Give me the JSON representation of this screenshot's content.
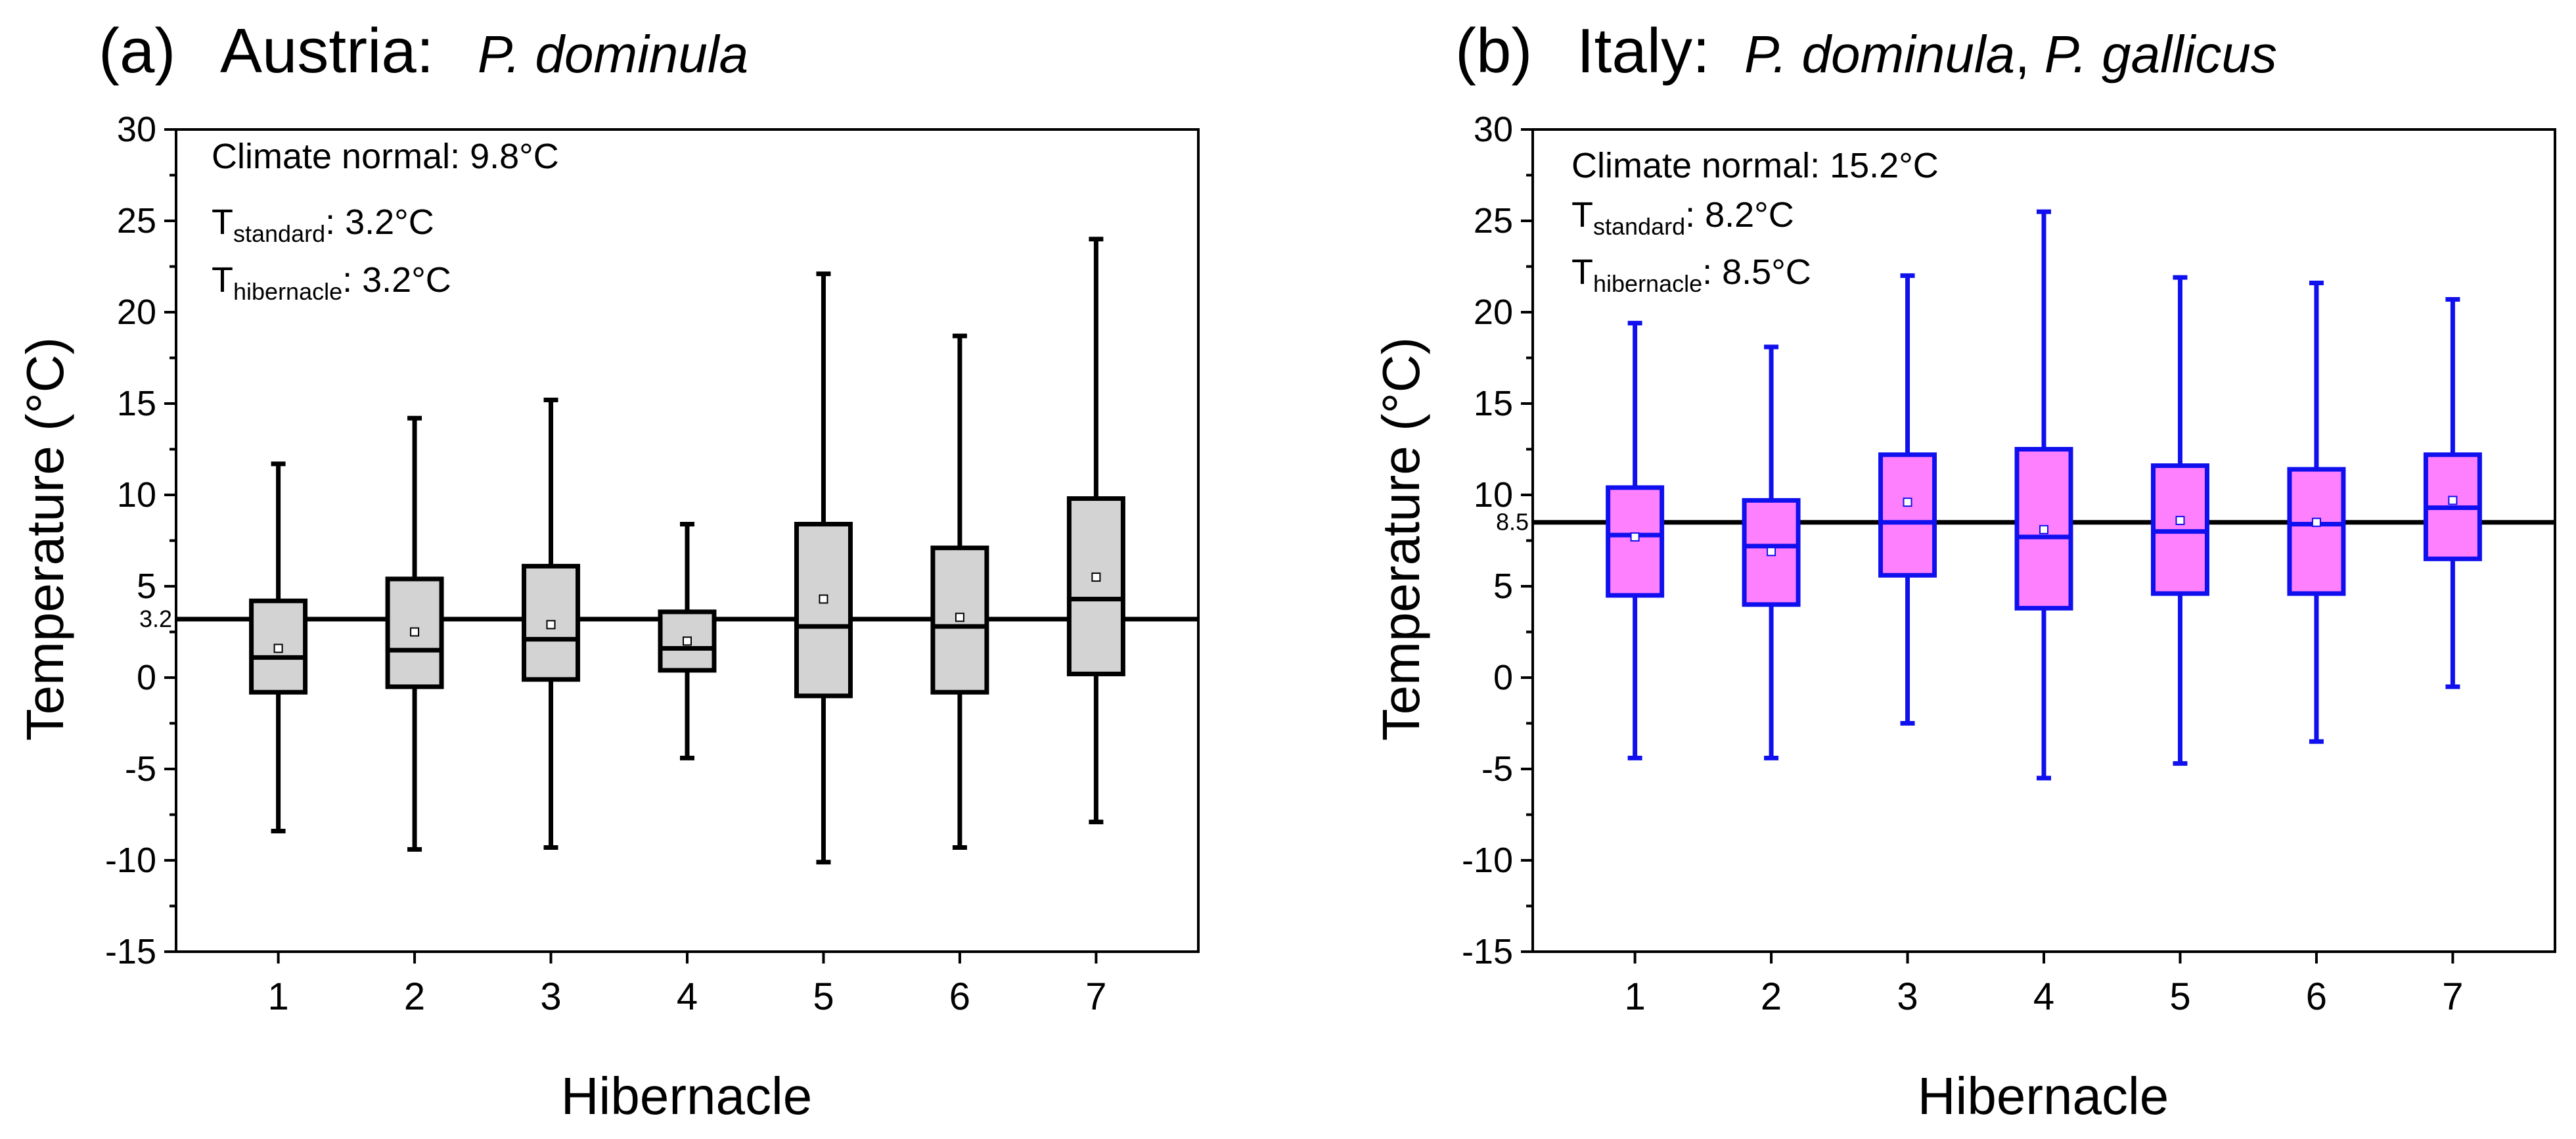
{
  "chart_data": [
    {
      "type": "boxplot",
      "panel_label": "(a)",
      "title": "Austria:",
      "title_species": "P. dominula",
      "xlabel": "Hibernacle",
      "ylabel": "Temperature (°C)",
      "ylim": [
        -15,
        30
      ],
      "yticks": [
        "-15",
        "-10",
        "-5",
        "0",
        "5",
        "10",
        "15",
        "20",
        "25",
        "30"
      ],
      "categories": [
        "1",
        "2",
        "3",
        "4",
        "5",
        "6",
        "7"
      ],
      "ref_line": 3.2,
      "ref_label": "3.2",
      "colors": {
        "box_fill": "#d3d3d3",
        "stroke": "#000000",
        "ref": "#000000"
      },
      "annotations": {
        "climate": "Climate normal: 9.8°C",
        "t_standard_main": "T",
        "t_standard_sub": "standard",
        "t_standard_value": ":   3.2°C",
        "t_hib_main": "T",
        "t_hib_sub": "hibernacle",
        "t_hib_value": ": 3.2°C"
      },
      "boxes": [
        {
          "whisker_low": -8.4,
          "q1": -0.8,
          "median": 1.1,
          "q3": 4.2,
          "whisker_high": 11.7,
          "mean": 1.6
        },
        {
          "whisker_low": -9.4,
          "q1": -0.5,
          "median": 1.5,
          "q3": 5.4,
          "whisker_high": 14.2,
          "mean": 2.5
        },
        {
          "whisker_low": -9.3,
          "q1": -0.1,
          "median": 2.1,
          "q3": 6.1,
          "whisker_high": 15.2,
          "mean": 2.9
        },
        {
          "whisker_low": -4.4,
          "q1": 0.4,
          "median": 1.6,
          "q3": 3.6,
          "whisker_high": 8.4,
          "mean": 2.0
        },
        {
          "whisker_low": -10.1,
          "q1": -1.0,
          "median": 2.8,
          "q3": 8.4,
          "whisker_high": 22.1,
          "mean": 4.3
        },
        {
          "whisker_low": -9.3,
          "q1": -0.8,
          "median": 2.8,
          "q3": 7.1,
          "whisker_high": 18.7,
          "mean": 3.3
        },
        {
          "whisker_low": -7.9,
          "q1": 0.2,
          "median": 4.3,
          "q3": 9.8,
          "whisker_high": 24.0,
          "mean": 5.5
        }
      ]
    },
    {
      "type": "boxplot",
      "panel_label": "(b)",
      "title": "Italy:",
      "title_species": "P. dominula",
      "title_sep": ",",
      "title_species2": "P. gallicus",
      "xlabel": "Hibernacle",
      "ylabel": "Temperature (°C)",
      "ylim": [
        -15,
        30
      ],
      "yticks": [
        "-15",
        "-10",
        "-5",
        "0",
        "5",
        "10",
        "15",
        "20",
        "25",
        "30"
      ],
      "categories": [
        "1",
        "2",
        "3",
        "4",
        "5",
        "6",
        "7"
      ],
      "ref_line": 8.5,
      "ref_label": "8.5",
      "colors": {
        "box_fill": "#ff80ff",
        "stroke": "#1010ee",
        "ref": "#000000"
      },
      "annotations": {
        "climate": "Climate normal: 15.2°C",
        "t_standard_main": "T",
        "t_standard_sub": "standard",
        "t_standard_value": ":   8.2°C",
        "t_hib_main": "T",
        "t_hib_sub": "hibernacle",
        "t_hib_value": ": 8.5°C"
      },
      "boxes": [
        {
          "whisker_low": -4.4,
          "q1": 4.5,
          "median": 7.8,
          "q3": 10.4,
          "whisker_high": 19.4,
          "mean": 7.7
        },
        {
          "whisker_low": -4.4,
          "q1": 4.0,
          "median": 7.2,
          "q3": 9.7,
          "whisker_high": 18.1,
          "mean": 6.9
        },
        {
          "whisker_low": -2.5,
          "q1": 5.6,
          "median": 8.5,
          "q3": 12.2,
          "whisker_high": 22.0,
          "mean": 9.6
        },
        {
          "whisker_low": -5.5,
          "q1": 3.8,
          "median": 7.7,
          "q3": 12.5,
          "whisker_high": 25.5,
          "mean": 8.1
        },
        {
          "whisker_low": -4.7,
          "q1": 4.6,
          "median": 8.0,
          "q3": 11.6,
          "whisker_high": 21.9,
          "mean": 8.6
        },
        {
          "whisker_low": -3.5,
          "q1": 4.6,
          "median": 8.4,
          "q3": 11.4,
          "whisker_high": 21.6,
          "mean": 8.5
        },
        {
          "whisker_low": -0.5,
          "q1": 6.5,
          "median": 9.3,
          "q3": 12.2,
          "whisker_high": 20.7,
          "mean": 9.7
        }
      ]
    }
  ]
}
